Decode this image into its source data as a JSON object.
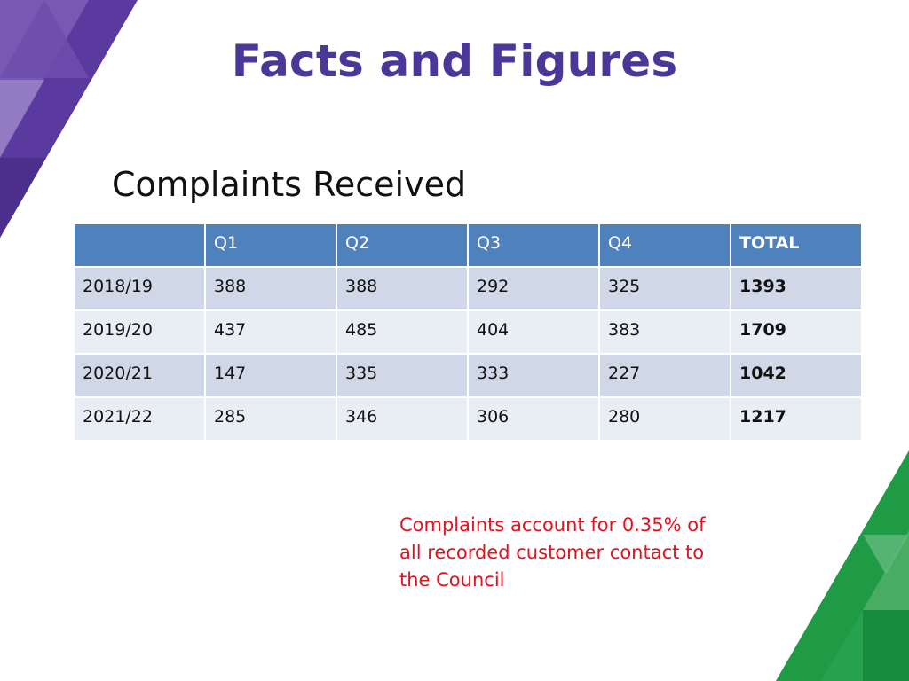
{
  "slide": {
    "title": "Facts and Figures",
    "subtitle": "Complaints Received",
    "note": "Complaints account for 0.35% of all recorded customer contact to the Council"
  },
  "table": {
    "headers": [
      "",
      "Q1",
      "Q2",
      "Q3",
      "Q4",
      "TOTAL"
    ],
    "rows": [
      [
        "2018/19",
        "388",
        "388",
        "292",
        "325",
        "1393"
      ],
      [
        "2019/20",
        "437",
        "485",
        "404",
        "383",
        "1709"
      ],
      [
        "2020/21",
        "147",
        "335",
        "333",
        "227",
        "1042"
      ],
      [
        "2021/22",
        "285",
        "346",
        "306",
        "280",
        "1217"
      ]
    ]
  },
  "colors": {
    "title": "#4b3797",
    "header_bg": "#4f81bd",
    "row_odd": "#d0d8e8",
    "row_even": "#e9edf4",
    "note": "#e0141e",
    "purple_deco": "#5b3aa0",
    "green_deco": "#1f9a45"
  }
}
